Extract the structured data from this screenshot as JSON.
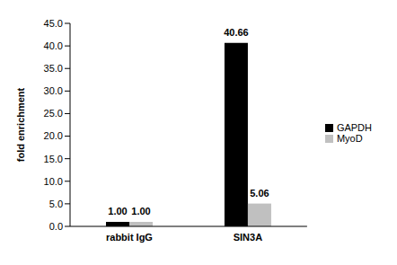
{
  "chart_data": {
    "type": "bar",
    "categories": [
      "rabbit IgG",
      "SIN3A"
    ],
    "series": [
      {
        "name": "GAPDH",
        "color": "#000000",
        "values": [
          1.0,
          40.66
        ],
        "value_labels": [
          "1.00",
          "40.66"
        ]
      },
      {
        "name": "MyoD",
        "color": "#c0c0c0",
        "values": [
          1.0,
          5.06
        ],
        "value_labels": [
          "1.00",
          "5.06"
        ]
      }
    ],
    "y_label": "fold enrichment",
    "ylim": [
      0,
      45
    ],
    "yticks": [
      {
        "value": 0,
        "label": "0.0"
      },
      {
        "value": 5,
        "label": "5.0"
      },
      {
        "value": 10,
        "label": "10.0"
      },
      {
        "value": 15,
        "label": "15.0"
      },
      {
        "value": 20,
        "label": "20.0"
      },
      {
        "value": 25,
        "label": "25.0"
      },
      {
        "value": 30,
        "label": "30.0"
      },
      {
        "value": 35,
        "label": "35.0"
      },
      {
        "value": 40,
        "label": "40.0"
      },
      {
        "value": 45,
        "label": "45.0"
      }
    ],
    "grid": false,
    "legend": "right",
    "data_labels": true
  }
}
